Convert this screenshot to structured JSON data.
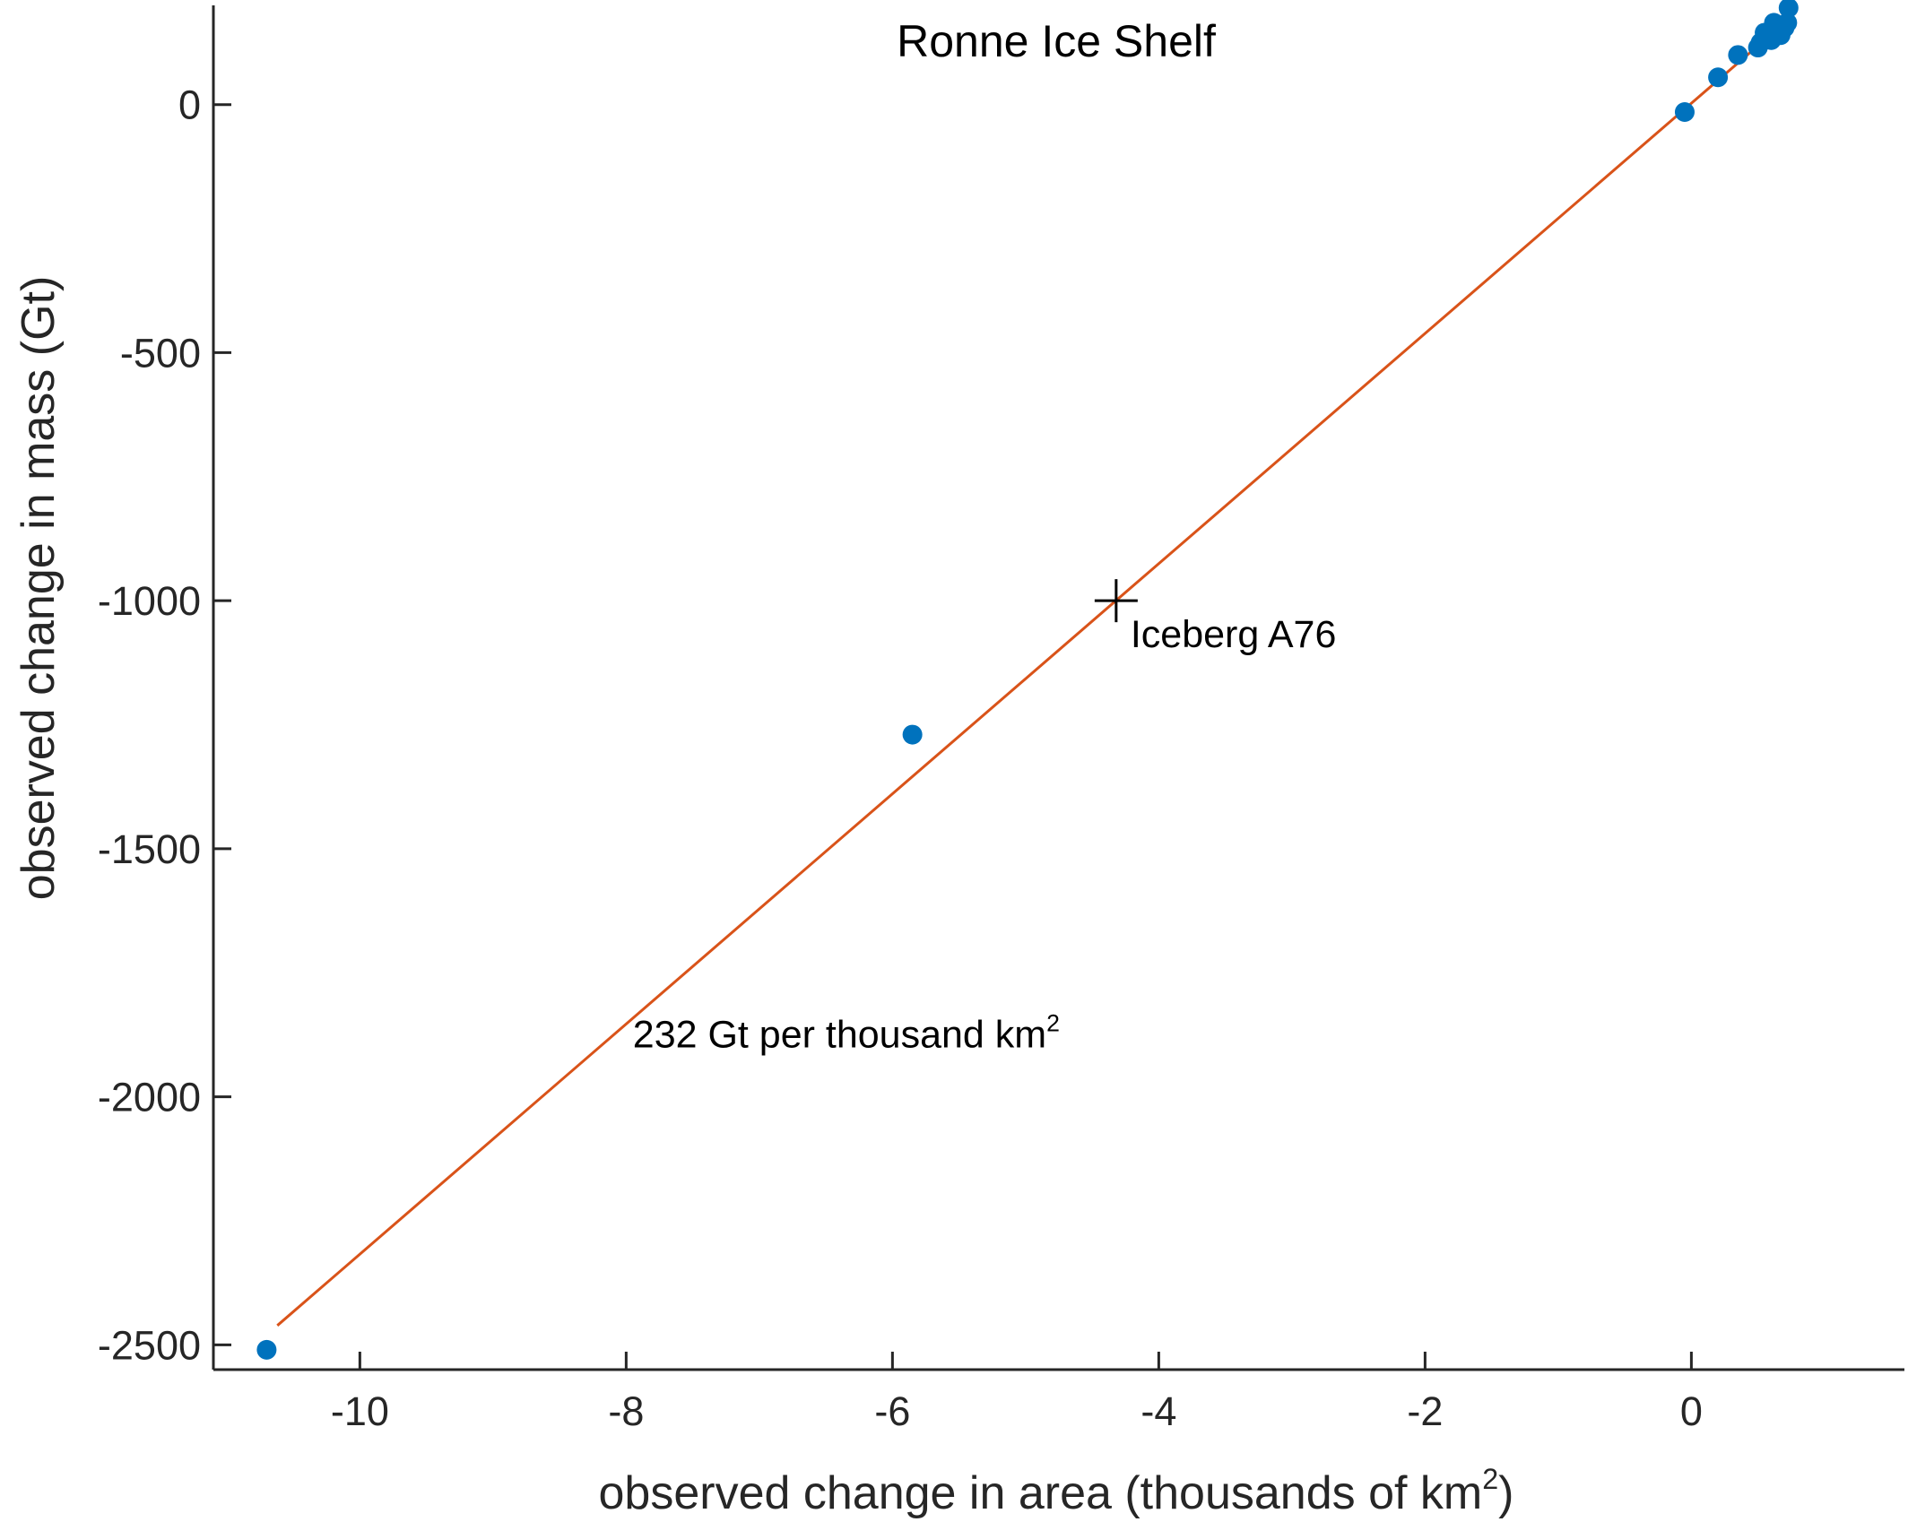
{
  "chart_data": {
    "type": "scatter",
    "title": "Ronne Ice Shelf",
    "xlabel": "observed change in area (thousands of km",
    "xlabel_sup": "2",
    "xlabel_end": ")",
    "ylabel": "observed change in mass (Gt)",
    "xlim": [
      -11.1,
      1.6
    ],
    "ylim": [
      -2550,
      200
    ],
    "xticks": [
      -10,
      -8,
      -6,
      -4,
      -2,
      0
    ],
    "xtick_labels": [
      "-10",
      "-8",
      "-6",
      "-4",
      "-2",
      "0"
    ],
    "yticks": [
      0,
      -500,
      -1000,
      -1500,
      -2000,
      -2500
    ],
    "ytick_labels": [
      "0",
      "-500",
      "-1000",
      "-1500",
      "-2000",
      "-2500"
    ],
    "grid": false,
    "colors": {
      "points": "#0072BD",
      "fit": "#D95319",
      "axis": "#262626",
      "marker": "#000000"
    },
    "points": [
      {
        "x": -10.7,
        "y": -2510
      },
      {
        "x": -5.85,
        "y": -1270
      },
      {
        "x": -0.05,
        "y": -15
      },
      {
        "x": 0.2,
        "y": 55
      },
      {
        "x": 0.35,
        "y": 100
      },
      {
        "x": 0.5,
        "y": 115
      },
      {
        "x": 0.52,
        "y": 125
      },
      {
        "x": 0.55,
        "y": 145
      },
      {
        "x": 0.6,
        "y": 130
      },
      {
        "x": 0.62,
        "y": 165
      },
      {
        "x": 0.65,
        "y": 150
      },
      {
        "x": 0.67,
        "y": 140
      },
      {
        "x": 0.7,
        "y": 155
      },
      {
        "x": 0.72,
        "y": 165
      },
      {
        "x": 0.73,
        "y": 195
      }
    ],
    "fit_line": {
      "label": "232 Gt per thousand km",
      "label_sup": "2",
      "slope": 232,
      "x_start": -10.62,
      "x_end": 0.72,
      "intercept": 2.7
    },
    "annotation": {
      "label": "Iceberg A76",
      "x": -4.32,
      "y": -1000
    }
  }
}
